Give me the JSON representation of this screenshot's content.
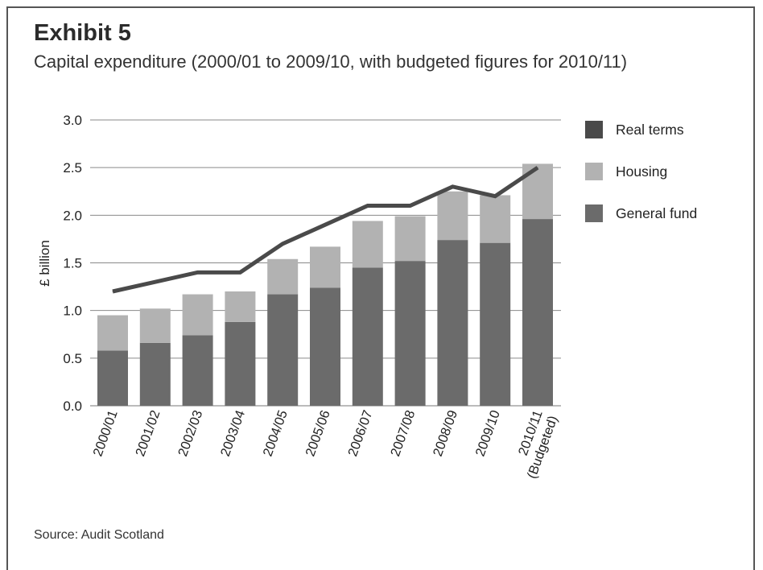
{
  "exhibit": "Exhibit 5",
  "title": "Capital expenditure (2000/01 to 2009/10, with budgeted figures for 2010/11)",
  "source": "Source: Audit Scotland",
  "chart_data": {
    "type": "bar",
    "stacked": true,
    "categories": [
      [
        "2000/01"
      ],
      [
        "2001/02"
      ],
      [
        "2002/03"
      ],
      [
        "2003/04"
      ],
      [
        "2004/05"
      ],
      [
        "2005/06"
      ],
      [
        "2006/07"
      ],
      [
        "2007/08"
      ],
      [
        "2008/09"
      ],
      [
        "2009/10"
      ],
      [
        "2010/11",
        "(Budgeted)"
      ]
    ],
    "series": [
      {
        "name": "General fund",
        "type": "bar",
        "color": "#6b6b6b",
        "values": [
          0.58,
          0.66,
          0.74,
          0.88,
          1.17,
          1.24,
          1.45,
          1.52,
          1.74,
          1.71,
          1.96
        ]
      },
      {
        "name": "Housing",
        "type": "bar",
        "color": "#b2b2b2",
        "values": [
          0.37,
          0.36,
          0.43,
          0.32,
          0.37,
          0.43,
          0.49,
          0.47,
          0.51,
          0.5,
          0.58
        ]
      },
      {
        "name": "Real terms",
        "type": "line",
        "color": "#4a4a4a",
        "values": [
          1.2,
          1.3,
          1.4,
          1.4,
          1.7,
          1.9,
          2.1,
          2.1,
          2.3,
          2.2,
          2.5
        ]
      }
    ],
    "ylabel": "£ billion",
    "ylim": [
      0,
      3.0
    ],
    "yticks": [
      "0.0",
      "0.5",
      "1.0",
      "1.5",
      "2.0",
      "2.5",
      "3.0"
    ],
    "grid": true,
    "legend": {
      "position": "right",
      "order": [
        "Real terms",
        "Housing",
        "General fund"
      ]
    }
  }
}
